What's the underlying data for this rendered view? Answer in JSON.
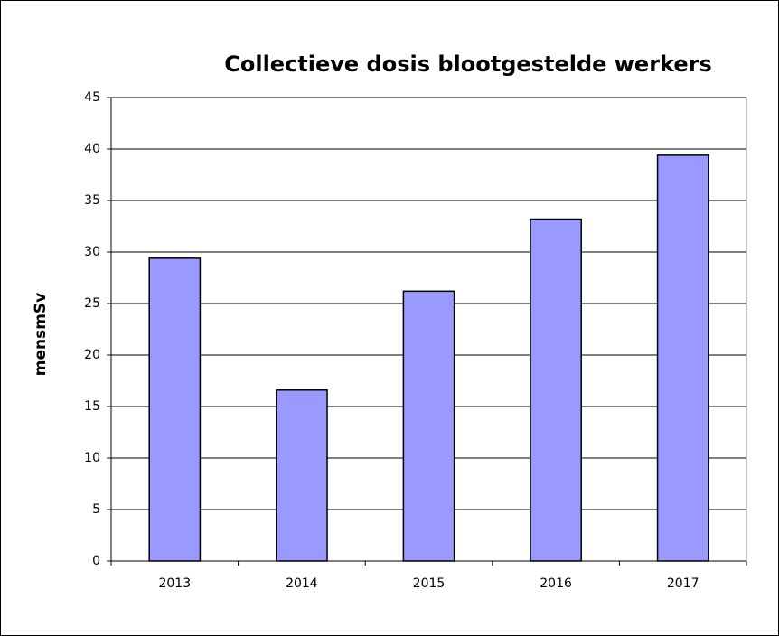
{
  "chart_data": {
    "type": "bar",
    "title": "Collectieve dosis blootgestelde werkers",
    "y_label": "mensmSv",
    "categories": [
      "2013",
      "2014",
      "2015",
      "2016",
      "2017"
    ],
    "values": [
      29.4,
      16.6,
      26.2,
      33.2,
      39.4
    ],
    "color": "#9999ff",
    "ylim": [
      0,
      45
    ],
    "yticks": [
      0,
      5,
      10,
      15,
      20,
      25,
      30,
      35,
      40,
      45
    ],
    "grid": true
  }
}
